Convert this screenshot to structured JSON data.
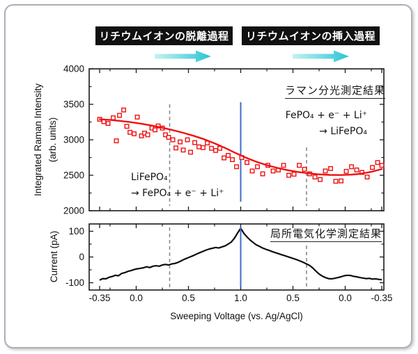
{
  "figure": {
    "header": {
      "left_label": "リチウムイオンの脱離過程",
      "right_label": "リチウムイオンの挿入過程"
    },
    "colors": {
      "accent_red": "#ef1010",
      "accent_blue": "#3e6dc9",
      "dashed_gray": "#8a8a8a",
      "trace_black": "#0d0d0d",
      "frame_black": "#1a1a1a",
      "arrow_gradient_start": "#c7f1f3",
      "arrow_gradient_end": "#29c5d6",
      "header_bg": "#111111",
      "header_text": "#ffffff"
    }
  },
  "chart_data": {
    "note": "Two stacked panels share one x-axis. x is position s along the voltage sweep: s = V + 0.35 on the forward sweep (-0.35 V to 1.0 V), then s = 1.35 + (1.0 - V) on the return sweep (1.0 V back to -0.35 V). Total span s = 0 to 2.7.",
    "x_axis": {
      "label": "Sweeping Voltage (vs. Ag/AgCl)",
      "ticks": [
        {
          "s": 0.0,
          "label": "-0.35"
        },
        {
          "s": 0.35,
          "label": "0.0"
        },
        {
          "s": 0.85,
          "label": "0.5"
        },
        {
          "s": 1.35,
          "label": "1.0"
        },
        {
          "s": 1.85,
          "label": "0.5"
        },
        {
          "s": 2.35,
          "label": "0.0"
        },
        {
          "s": 2.7,
          "label": "-0.35"
        }
      ],
      "minor_ticks_s": [
        0.1,
        0.6,
        1.1,
        1.6,
        2.1,
        2.6
      ]
    },
    "vlines": {
      "blue_sweep_turn_s": 1.35,
      "dashed_s": [
        0.67,
        1.98
      ],
      "dashed_voltages": [
        0.33,
        0.37
      ]
    },
    "panels": [
      {
        "type": "scatter",
        "panel_label": "ラマン分光測定結果",
        "ylabel_line1": "Integrated Raman Intensity",
        "ylabel_line2": "(arb. units)",
        "ylim": [
          2000,
          4000
        ],
        "yticks": [
          2000,
          2500,
          3000,
          3500,
          4000
        ],
        "yticks_minor": [
          2250,
          2750,
          3250,
          3750
        ],
        "annotations": {
          "deintercalation_line1": "LiFePO₄",
          "deintercalation_line2": "→ FePO₄ + e⁻ + Li⁺",
          "intercalation_line1": "FePO₄ + e⁻ + Li⁺",
          "intercalation_line2": "→ LiFePO₄"
        },
        "scatter_points": [
          [
            0.0,
            3290
          ],
          [
            0.04,
            3255
          ],
          [
            0.08,
            3230
          ],
          [
            0.13,
            3310
          ],
          [
            0.16,
            2985
          ],
          [
            0.19,
            3345
          ],
          [
            0.23,
            3420
          ],
          [
            0.26,
            3190
          ],
          [
            0.29,
            3105
          ],
          [
            0.33,
            3085
          ],
          [
            0.36,
            3320
          ],
          [
            0.4,
            3055
          ],
          [
            0.43,
            3095
          ],
          [
            0.46,
            3070
          ],
          [
            0.5,
            3165
          ],
          [
            0.53,
            3140
          ],
          [
            0.56,
            3195
          ],
          [
            0.6,
            3165
          ],
          [
            0.63,
            3070
          ],
          [
            0.66,
            3035
          ],
          [
            0.7,
            3000
          ],
          [
            0.73,
            2885
          ],
          [
            0.77,
            2970
          ],
          [
            0.8,
            2855
          ],
          [
            0.84,
            3000
          ],
          [
            0.87,
            2825
          ],
          [
            0.91,
            2960
          ],
          [
            0.95,
            2900
          ],
          [
            0.99,
            2890
          ],
          [
            1.03,
            2955
          ],
          [
            1.07,
            2880
          ],
          [
            1.11,
            2850
          ],
          [
            1.15,
            2880
          ],
          [
            1.19,
            2745
          ],
          [
            1.23,
            2780
          ],
          [
            1.27,
            2720
          ],
          [
            1.31,
            2620
          ],
          [
            1.36,
            2750
          ],
          [
            1.41,
            2680
          ],
          [
            1.46,
            2560
          ],
          [
            1.51,
            2620
          ],
          [
            1.56,
            2520
          ],
          [
            1.61,
            2640
          ],
          [
            1.66,
            2560
          ],
          [
            1.71,
            2575
          ],
          [
            1.76,
            2640
          ],
          [
            1.81,
            2500
          ],
          [
            1.86,
            2515
          ],
          [
            1.91,
            2640
          ],
          [
            1.96,
            2585
          ],
          [
            2.01,
            2520
          ],
          [
            2.06,
            2475
          ],
          [
            2.11,
            2440
          ],
          [
            2.16,
            2560
          ],
          [
            2.21,
            2595
          ],
          [
            2.26,
            2415
          ],
          [
            2.31,
            2420
          ],
          [
            2.36,
            2555
          ],
          [
            2.41,
            2620
          ],
          [
            2.46,
            2575
          ],
          [
            2.51,
            2540
          ],
          [
            2.56,
            2475
          ],
          [
            2.61,
            2610
          ],
          [
            2.66,
            2680
          ],
          [
            2.7,
            2640
          ]
        ],
        "fit_curve": [
          [
            0.0,
            3290
          ],
          [
            0.1,
            3280
          ],
          [
            0.2,
            3266
          ],
          [
            0.3,
            3248
          ],
          [
            0.4,
            3226
          ],
          [
            0.5,
            3200
          ],
          [
            0.6,
            3170
          ],
          [
            0.7,
            3136
          ],
          [
            0.8,
            3098
          ],
          [
            0.9,
            3056
          ],
          [
            1.0,
            3008
          ],
          [
            1.1,
            2950
          ],
          [
            1.2,
            2885
          ],
          [
            1.3,
            2815
          ],
          [
            1.4,
            2748
          ],
          [
            1.5,
            2690
          ],
          [
            1.6,
            2642
          ],
          [
            1.7,
            2604
          ],
          [
            1.8,
            2572
          ],
          [
            1.9,
            2546
          ],
          [
            2.0,
            2527
          ],
          [
            2.1,
            2513
          ],
          [
            2.2,
            2505
          ],
          [
            2.3,
            2503
          ],
          [
            2.4,
            2508
          ],
          [
            2.5,
            2522
          ],
          [
            2.6,
            2548
          ],
          [
            2.7,
            2588
          ]
        ]
      },
      {
        "type": "line",
        "panel_label": "局所電気化学測定結果",
        "ylabel": "Current (pA)",
        "ylim": [
          -128,
          128
        ],
        "yticks": [
          -100,
          0,
          100
        ],
        "yticks_minor": [
          -50,
          50
        ],
        "current_points": [
          [
            0.0,
            -90
          ],
          [
            0.03,
            -84
          ],
          [
            0.06,
            -85
          ],
          [
            0.09,
            -79
          ],
          [
            0.12,
            -76
          ],
          [
            0.15,
            -71
          ],
          [
            0.18,
            -73
          ],
          [
            0.21,
            -64
          ],
          [
            0.24,
            -61
          ],
          [
            0.27,
            -56
          ],
          [
            0.3,
            -53
          ],
          [
            0.33,
            -49
          ],
          [
            0.36,
            -46
          ],
          [
            0.39,
            -44
          ],
          [
            0.42,
            -42
          ],
          [
            0.45,
            -38
          ],
          [
            0.48,
            -41
          ],
          [
            0.51,
            -36
          ],
          [
            0.54,
            -34
          ],
          [
            0.57,
            -36
          ],
          [
            0.6,
            -31
          ],
          [
            0.63,
            -29
          ],
          [
            0.66,
            -31
          ],
          [
            0.69,
            -27
          ],
          [
            0.72,
            -25
          ],
          [
            0.75,
            -21
          ],
          [
            0.78,
            -15
          ],
          [
            0.81,
            -9
          ],
          [
            0.84,
            -4
          ],
          [
            0.87,
            1
          ],
          [
            0.9,
            6
          ],
          [
            0.93,
            12
          ],
          [
            0.96,
            17
          ],
          [
            0.99,
            22
          ],
          [
            1.02,
            27
          ],
          [
            1.05,
            31
          ],
          [
            1.08,
            34
          ],
          [
            1.11,
            37
          ],
          [
            1.14,
            35
          ],
          [
            1.17,
            39
          ],
          [
            1.2,
            43
          ],
          [
            1.23,
            50
          ],
          [
            1.26,
            58
          ],
          [
            1.29,
            73
          ],
          [
            1.32,
            93
          ],
          [
            1.35,
            112
          ],
          [
            1.38,
            92
          ],
          [
            1.41,
            78
          ],
          [
            1.44,
            66
          ],
          [
            1.47,
            56
          ],
          [
            1.5,
            47
          ],
          [
            1.53,
            41
          ],
          [
            1.56,
            35
          ],
          [
            1.59,
            30
          ],
          [
            1.62,
            26
          ],
          [
            1.65,
            21
          ],
          [
            1.68,
            17
          ],
          [
            1.71,
            13
          ],
          [
            1.74,
            9
          ],
          [
            1.77,
            5
          ],
          [
            1.8,
            1
          ],
          [
            1.83,
            -3
          ],
          [
            1.86,
            -7
          ],
          [
            1.89,
            -11
          ],
          [
            1.92,
            -16
          ],
          [
            1.95,
            -21
          ],
          [
            1.98,
            -27
          ],
          [
            2.01,
            -33
          ],
          [
            2.04,
            -43
          ],
          [
            2.07,
            -55
          ],
          [
            2.1,
            -66
          ],
          [
            2.13,
            -74
          ],
          [
            2.16,
            -80
          ],
          [
            2.19,
            -84
          ],
          [
            2.22,
            -85
          ],
          [
            2.25,
            -83
          ],
          [
            2.28,
            -80
          ],
          [
            2.31,
            -77
          ],
          [
            2.34,
            -73
          ],
          [
            2.37,
            -71
          ],
          [
            2.4,
            -72
          ],
          [
            2.43,
            -75
          ],
          [
            2.46,
            -77
          ],
          [
            2.49,
            -80
          ],
          [
            2.52,
            -82
          ],
          [
            2.55,
            -84
          ],
          [
            2.58,
            -83
          ],
          [
            2.61,
            -86
          ],
          [
            2.64,
            -85
          ],
          [
            2.67,
            -87
          ],
          [
            2.7,
            -88
          ]
        ]
      }
    ]
  }
}
